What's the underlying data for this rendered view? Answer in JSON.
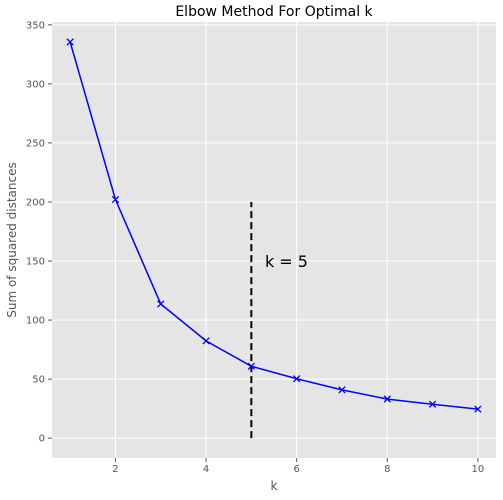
{
  "chart_data": {
    "type": "line",
    "title": "Elbow Method For Optimal k",
    "xlabel": "k",
    "ylabel": "Sum of squared distances",
    "xlim": [
      0.6,
      10.4
    ],
    "ylim": [
      -16.8,
      352.4
    ],
    "xticks": [
      2,
      4,
      6,
      8,
      10
    ],
    "yticks": [
      0,
      50,
      100,
      150,
      200,
      250,
      300,
      350
    ],
    "grid": true,
    "series": [
      {
        "x": [
          1,
          2,
          3,
          4,
          5,
          6,
          7,
          8,
          9,
          10
        ],
        "values": [
          335.5,
          202.1,
          113.6,
          82.4,
          60.9,
          50.3,
          40.9,
          33.1,
          28.7,
          24.6
        ],
        "color": "#0000ff",
        "marker": "x"
      }
    ],
    "vline": {
      "x": 5,
      "y0": 0,
      "y1": 200,
      "style": "dashed",
      "color": "#000000"
    },
    "annotation": {
      "text": "k = 5",
      "x": 5.3,
      "y": 150
    }
  },
  "colors": {
    "plot_background": "#e5e5e5",
    "grid": "#ffffff"
  }
}
